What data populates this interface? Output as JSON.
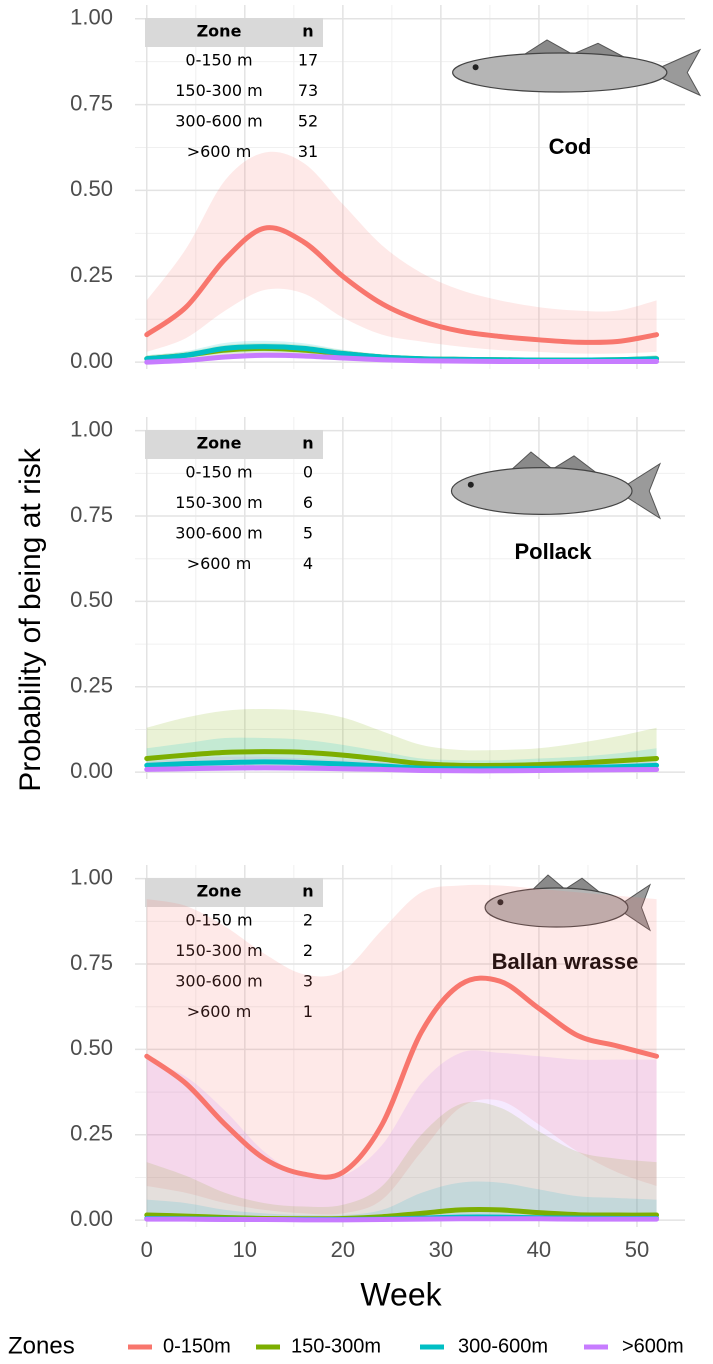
{
  "shared": {
    "y_label": "Probability of being at risk",
    "x_label": "Week",
    "legend_title": "Zones"
  },
  "chart_data": [
    {
      "type": "line",
      "title": "Cod",
      "table": {
        "columns": [
          "Zone",
          "n"
        ],
        "rows": [
          [
            "0-150 m",
            17
          ],
          [
            "150-300 m",
            73
          ],
          [
            "300-600 m",
            52
          ],
          [
            ">600 m",
            31
          ]
        ]
      },
      "x": [
        0,
        4,
        8,
        12,
        16,
        20,
        24,
        28,
        32,
        36,
        40,
        44,
        48,
        52
      ],
      "xlim": [
        -1.2,
        54.9
      ],
      "xticks": [
        0,
        10,
        20,
        30,
        40,
        50
      ],
      "x_minor_ticks": [
        5,
        15,
        25,
        35,
        45
      ],
      "ylim": [
        -0.02,
        1.04
      ],
      "yticks": [
        {
          "value": 0,
          "label": "0.00"
        },
        {
          "value": 0.25,
          "label": "0.25"
        },
        {
          "value": 0.5,
          "label": "0.50"
        },
        {
          "value": 0.75,
          "label": "0.75"
        },
        {
          "value": 1,
          "label": "1.00"
        }
      ],
      "y_minor_ticks": [
        0.125,
        0.375,
        0.625,
        0.875
      ],
      "grid": true,
      "series": [
        {
          "name": "0-150m",
          "color": "#f8766d",
          "values": [
            0.08,
            0.16,
            0.3,
            0.39,
            0.35,
            0.25,
            0.17,
            0.12,
            0.09,
            0.075,
            0.065,
            0.058,
            0.06,
            0.08
          ],
          "upper": [
            0.18,
            0.33,
            0.53,
            0.61,
            0.58,
            0.46,
            0.34,
            0.26,
            0.21,
            0.18,
            0.16,
            0.15,
            0.15,
            0.18
          ],
          "lower": [
            0.03,
            0.07,
            0.15,
            0.21,
            0.2,
            0.13,
            0.08,
            0.06,
            0.045,
            0.035,
            0.03,
            0.025,
            0.025,
            0.03
          ]
        },
        {
          "name": "150-300m",
          "color": "#7cae00",
          "values": [
            0.01,
            0.02,
            0.035,
            0.04,
            0.035,
            0.025,
            0.015,
            0.01,
            0.008,
            0.007,
            0.006,
            0.006,
            0.007,
            0.01
          ],
          "upper": [
            0.02,
            0.03,
            0.05,
            0.055,
            0.05,
            0.035,
            0.022,
            0.015,
            0.012,
            0.011,
            0.01,
            0.01,
            0.012,
            0.02
          ],
          "lower": [
            0.005,
            0.012,
            0.022,
            0.027,
            0.024,
            0.017,
            0.01,
            0.006,
            0.005,
            0.004,
            0.003,
            0.003,
            0.004,
            0.005
          ]
        },
        {
          "name": "300-600m",
          "color": "#00bfc4",
          "values": [
            0.01,
            0.02,
            0.04,
            0.045,
            0.04,
            0.025,
            0.015,
            0.01,
            0.008,
            0.007,
            0.006,
            0.006,
            0.007,
            0.01
          ],
          "upper": [
            0.02,
            0.032,
            0.056,
            0.062,
            0.055,
            0.036,
            0.023,
            0.016,
            0.013,
            0.011,
            0.01,
            0.01,
            0.012,
            0.02
          ],
          "lower": [
            0.005,
            0.012,
            0.026,
            0.031,
            0.027,
            0.017,
            0.01,
            0.006,
            0.005,
            0.004,
            0.003,
            0.003,
            0.004,
            0.005
          ]
        },
        {
          "name": ">600m",
          "color": "#c77cff",
          "values": [
            0.0,
            0.005,
            0.015,
            0.02,
            0.018,
            0.012,
            0.007,
            0.004,
            0.003,
            0.002,
            0.002,
            0.002,
            0.002,
            0.002
          ],
          "upper": [
            0.004,
            0.01,
            0.024,
            0.03,
            0.027,
            0.019,
            0.012,
            0.008,
            0.006,
            0.005,
            0.005,
            0.005,
            0.005,
            0.006
          ],
          "lower": [
            0.0,
            0.002,
            0.008,
            0.012,
            0.011,
            0.007,
            0.004,
            0.002,
            0.001,
            0.001,
            0.001,
            0.001,
            0.001,
            0.0
          ]
        }
      ]
    },
    {
      "type": "line",
      "title": "Pollack",
      "table": {
        "columns": [
          "Zone",
          "n"
        ],
        "rows": [
          [
            "0-150 m",
            0
          ],
          [
            "150-300 m",
            6
          ],
          [
            "300-600 m",
            5
          ],
          [
            ">600 m",
            4
          ]
        ]
      },
      "x": [
        0,
        4,
        8,
        12,
        16,
        20,
        24,
        28,
        32,
        36,
        40,
        44,
        48,
        52
      ],
      "xlim": [
        -1.2,
        54.9
      ],
      "xticks": [
        0,
        10,
        20,
        30,
        40,
        50
      ],
      "x_minor_ticks": [
        5,
        15,
        25,
        35,
        45
      ],
      "ylim": [
        -0.02,
        1.04
      ],
      "yticks": [
        {
          "value": 0,
          "label": "0.00"
        },
        {
          "value": 0.25,
          "label": "0.25"
        },
        {
          "value": 0.5,
          "label": "0.50"
        },
        {
          "value": 0.75,
          "label": "0.75"
        },
        {
          "value": 1,
          "label": "1.00"
        }
      ],
      "y_minor_ticks": [
        0.125,
        0.375,
        0.625,
        0.875
      ],
      "grid": true,
      "series": [
        {
          "name": "150-300m",
          "color": "#7cae00",
          "values": [
            0.04,
            0.05,
            0.058,
            0.06,
            0.058,
            0.05,
            0.038,
            0.025,
            0.02,
            0.02,
            0.022,
            0.027,
            0.033,
            0.04
          ],
          "upper": [
            0.13,
            0.16,
            0.18,
            0.185,
            0.18,
            0.16,
            0.12,
            0.08,
            0.065,
            0.065,
            0.07,
            0.085,
            0.105,
            0.13
          ],
          "lower": [
            0.01,
            0.015,
            0.018,
            0.02,
            0.018,
            0.015,
            0.01,
            0.007,
            0.005,
            0.005,
            0.006,
            0.008,
            0.01,
            0.01
          ]
        },
        {
          "name": "300-600m",
          "color": "#00bfc4",
          "values": [
            0.02,
            0.025,
            0.028,
            0.03,
            0.028,
            0.024,
            0.018,
            0.012,
            0.01,
            0.01,
            0.011,
            0.013,
            0.016,
            0.02
          ],
          "upper": [
            0.07,
            0.085,
            0.1,
            0.1,
            0.095,
            0.08,
            0.06,
            0.04,
            0.035,
            0.035,
            0.04,
            0.045,
            0.055,
            0.07
          ],
          "lower": [
            0.005,
            0.007,
            0.008,
            0.009,
            0.008,
            0.007,
            0.005,
            0.003,
            0.003,
            0.003,
            0.003,
            0.004,
            0.004,
            0.005
          ]
        },
        {
          "name": ">600m",
          "color": "#c77cff",
          "values": [
            0.008,
            0.01,
            0.012,
            0.013,
            0.012,
            0.01,
            0.008,
            0.005,
            0.004,
            0.004,
            0.005,
            0.006,
            0.007,
            0.008
          ],
          "upper": [
            0.03,
            0.04,
            0.045,
            0.045,
            0.04,
            0.035,
            0.03,
            0.02,
            0.015,
            0.015,
            0.018,
            0.022,
            0.026,
            0.03
          ],
          "lower": [
            0.002,
            0.002,
            0.003,
            0.003,
            0.003,
            0.002,
            0.002,
            0.001,
            0.001,
            0.001,
            0.001,
            0.001,
            0.002,
            0.002
          ]
        }
      ]
    },
    {
      "type": "line",
      "title": "Ballan wrasse",
      "table": {
        "columns": [
          "Zone",
          "n"
        ],
        "rows": [
          [
            "0-150 m",
            2
          ],
          [
            "150-300 m",
            2
          ],
          [
            "300-600 m",
            3
          ],
          [
            ">600 m",
            1
          ]
        ]
      },
      "x": [
        0,
        4,
        8,
        12,
        16,
        20,
        24,
        28,
        32,
        36,
        40,
        44,
        48,
        52
      ],
      "xlim": [
        -1.2,
        54.9
      ],
      "xticks": [
        0,
        10,
        20,
        30,
        40,
        50
      ],
      "x_minor_ticks": [
        5,
        15,
        25,
        35,
        45
      ],
      "ylim": [
        -0.02,
        1.04
      ],
      "yticks": [
        {
          "value": 0,
          "label": "0.00"
        },
        {
          "value": 0.25,
          "label": "0.25"
        },
        {
          "value": 0.5,
          "label": "0.50"
        },
        {
          "value": 0.75,
          "label": "0.75"
        },
        {
          "value": 1,
          "label": "1.00"
        }
      ],
      "y_minor_ticks": [
        0.125,
        0.375,
        0.625,
        0.875
      ],
      "grid": true,
      "series": [
        {
          "name": "0-150m",
          "color": "#f8766d",
          "values": [
            0.48,
            0.4,
            0.28,
            0.18,
            0.135,
            0.14,
            0.28,
            0.55,
            0.69,
            0.7,
            0.62,
            0.54,
            0.51,
            0.48
          ],
          "upper": [
            0.94,
            0.92,
            0.86,
            0.78,
            0.72,
            0.73,
            0.85,
            0.96,
            0.98,
            0.98,
            0.97,
            0.96,
            0.95,
            0.94
          ],
          "lower": [
            0.1,
            0.08,
            0.05,
            0.03,
            0.02,
            0.02,
            0.06,
            0.2,
            0.33,
            0.35,
            0.28,
            0.2,
            0.14,
            0.1
          ]
        },
        {
          "name": "150-300m",
          "color": "#7cae00",
          "values": [
            0.015,
            0.012,
            0.008,
            0.005,
            0.004,
            0.005,
            0.01,
            0.02,
            0.03,
            0.03,
            0.022,
            0.016,
            0.015,
            0.015
          ],
          "upper": [
            0.17,
            0.13,
            0.08,
            0.05,
            0.04,
            0.045,
            0.1,
            0.25,
            0.34,
            0.33,
            0.26,
            0.2,
            0.18,
            0.17
          ],
          "lower": [
            0.001,
            0.001,
            0.0,
            0.0,
            0.0,
            0.0,
            0.001,
            0.002,
            0.003,
            0.003,
            0.002,
            0.001,
            0.001,
            0.001
          ]
        },
        {
          "name": "300-600m",
          "color": "#00bfc4",
          "values": [
            0.005,
            0.004,
            0.003,
            0.002,
            0.002,
            0.002,
            0.003,
            0.006,
            0.009,
            0.009,
            0.007,
            0.006,
            0.005,
            0.005
          ],
          "upper": [
            0.06,
            0.05,
            0.03,
            0.02,
            0.015,
            0.015,
            0.03,
            0.08,
            0.11,
            0.11,
            0.09,
            0.07,
            0.065,
            0.06
          ],
          "lower": [
            0.0,
            0.0,
            0.0,
            0.0,
            0.0,
            0.0,
            0.0,
            0.0,
            0.001,
            0.001,
            0.0,
            0.0,
            0.0,
            0.0
          ]
        },
        {
          "name": ">600m",
          "color": "#c77cff",
          "values": [
            0.003,
            0.003,
            0.002,
            0.002,
            0.001,
            0.001,
            0.002,
            0.003,
            0.004,
            0.004,
            0.004,
            0.003,
            0.003,
            0.003
          ],
          "upper": [
            0.47,
            0.42,
            0.32,
            0.2,
            0.13,
            0.13,
            0.22,
            0.4,
            0.49,
            0.49,
            0.48,
            0.47,
            0.47,
            0.47
          ],
          "lower": [
            0.0,
            0.0,
            0.0,
            0.0,
            0.0,
            0.0,
            0.0,
            0.0,
            0.0,
            0.0,
            0.0,
            0.0,
            0.0,
            0.0
          ]
        }
      ]
    }
  ]
}
